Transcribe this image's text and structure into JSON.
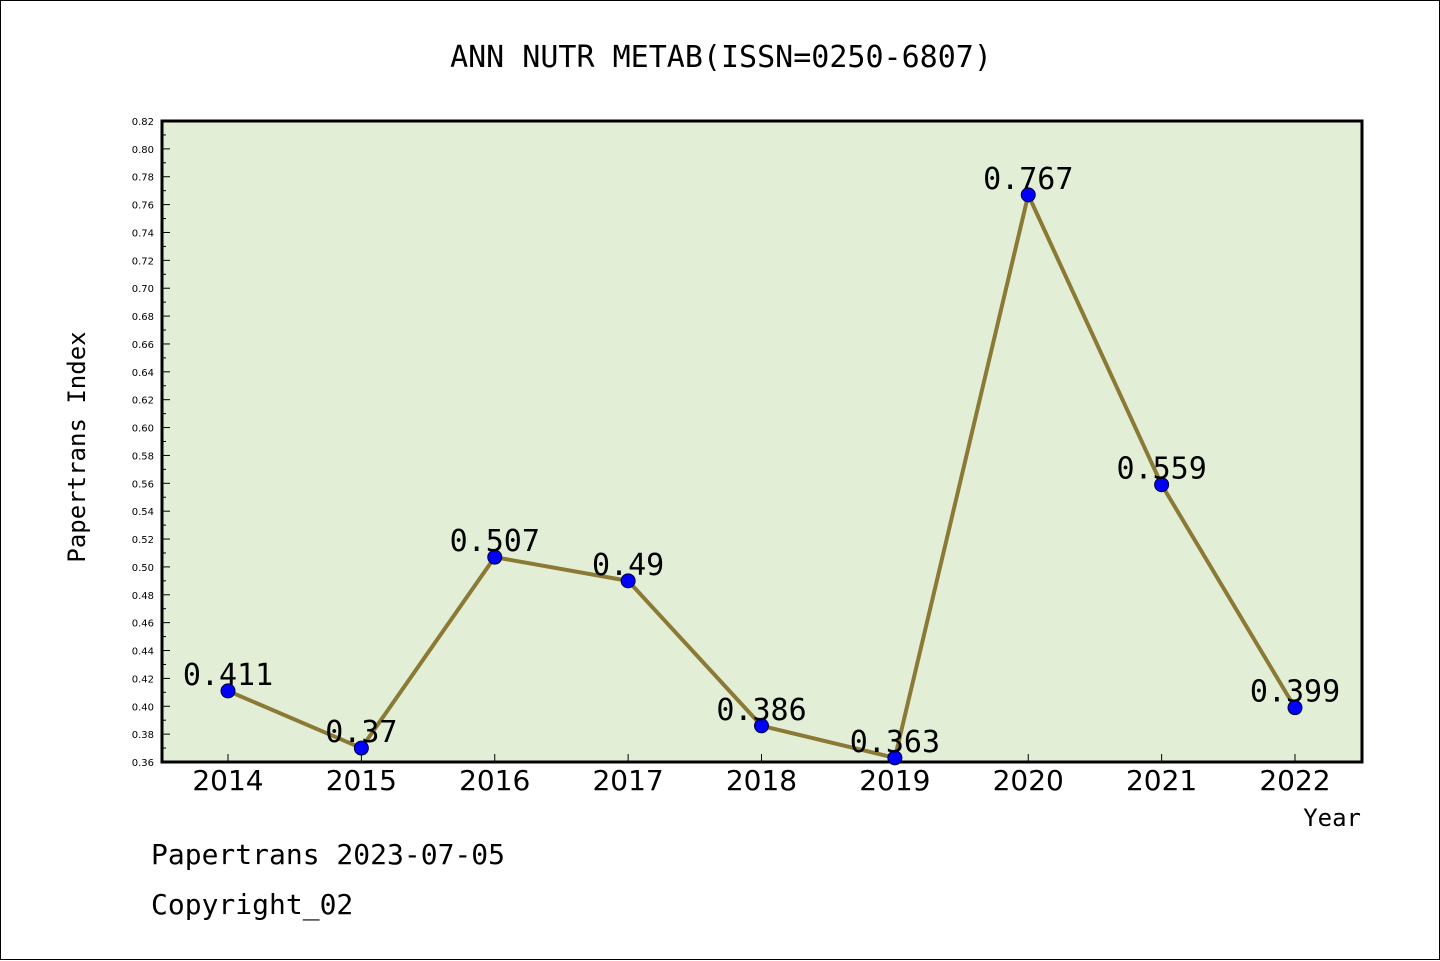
{
  "chart_data": {
    "type": "line",
    "title": "ANN NUTR METAB(ISSN=0250-6807)",
    "xlabel": "Year",
    "ylabel": "Papertrans Index",
    "categories": [
      "2014",
      "2015",
      "2016",
      "2017",
      "2018",
      "2019",
      "2020",
      "2021",
      "2022"
    ],
    "series": [
      {
        "values": [
          0.411,
          0.37,
          0.507,
          0.49,
          0.386,
          0.363,
          0.767,
          0.559,
          0.399
        ]
      }
    ],
    "data_labels": [
      "0.411",
      "0.37",
      "0.507",
      "0.49",
      "0.386",
      "0.363",
      "0.767",
      "0.559",
      "0.399"
    ],
    "ylim": [
      0.36,
      0.82
    ],
    "ytick_step": 0.02,
    "grid": false,
    "colors": {
      "plot_bg": "#e2efd6",
      "line": "#8b7a35",
      "marker": "#0000ff"
    }
  },
  "footer": {
    "line1": "Papertrans 2023-07-05",
    "line2": "Copyright_02"
  }
}
